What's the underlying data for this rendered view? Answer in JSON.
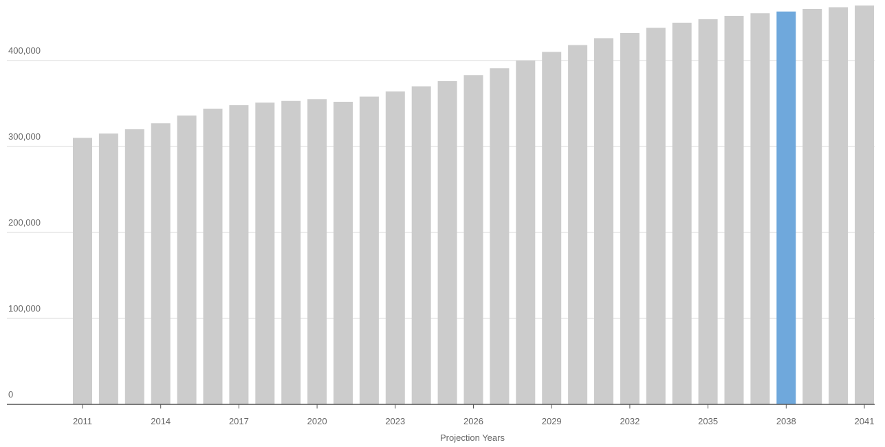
{
  "chart_data": {
    "type": "bar",
    "title": "",
    "xlabel": "Projection Years",
    "ylabel": "",
    "ylim": [
      0,
      480000
    ],
    "y_ticks": [
      0,
      100000,
      200000,
      300000,
      400000
    ],
    "y_tick_labels": [
      "0",
      "100,000",
      "200,000",
      "300,000",
      "400,000"
    ],
    "x_tick_labels": [
      "2011",
      "2014",
      "2017",
      "2020",
      "2023",
      "2026",
      "2029",
      "2032",
      "2035",
      "2038",
      "2041"
    ],
    "categories": [
      "2011",
      "2012",
      "2013",
      "2014",
      "2015",
      "2016",
      "2017",
      "2018",
      "2019",
      "2020",
      "2021",
      "2022",
      "2023",
      "2024",
      "2025",
      "2026",
      "2027",
      "2028",
      "2029",
      "2030",
      "2031",
      "2032",
      "2033",
      "2034",
      "2035",
      "2036",
      "2037",
      "2038",
      "2039",
      "2040",
      "2041"
    ],
    "values": [
      310000,
      315000,
      320000,
      327000,
      336000,
      344000,
      348000,
      351000,
      353000,
      355000,
      352000,
      358000,
      364000,
      370000,
      376000,
      383000,
      391000,
      400000,
      410000,
      418000,
      426000,
      432000,
      438000,
      444000,
      448000,
      452000,
      455000,
      457000,
      460000,
      462000,
      464000
    ],
    "highlight_category": "2038",
    "colors": {
      "bar": "#cccccc",
      "highlight": "#6fa8dc",
      "grid": "#d9d9d9",
      "baseline": "#555555",
      "text": "#666666"
    },
    "grid": true,
    "legend": "none"
  }
}
